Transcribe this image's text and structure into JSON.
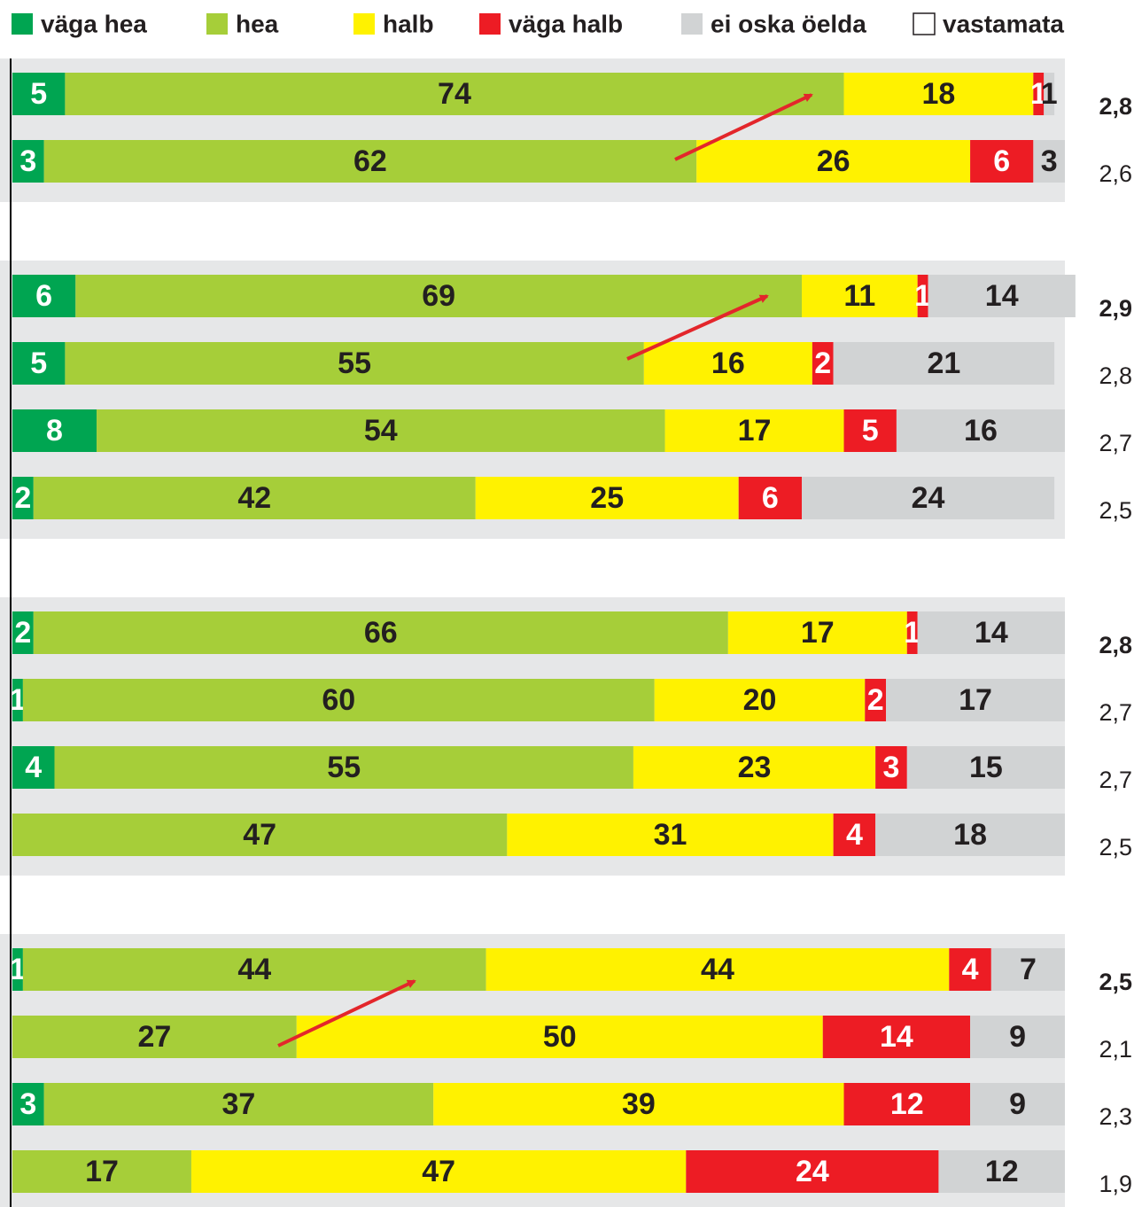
{
  "chart_data": {
    "type": "stacked_barh",
    "categories": [
      null,
      null,
      null,
      null,
      null,
      null,
      null,
      null,
      null,
      null,
      null,
      null,
      null,
      null
    ],
    "xlim": [
      0,
      100
    ],
    "series": [
      {
        "name": "väga hea",
        "color": "#00a551",
        "values": [
          5,
          3,
          6,
          5,
          8,
          2,
          2,
          1,
          4,
          null,
          1,
          null,
          3,
          null
        ]
      },
      {
        "name": "hea",
        "color": "#a6ce39",
        "values": [
          74,
          62,
          69,
          55,
          54,
          42,
          66,
          60,
          55,
          47,
          44,
          27,
          37,
          17
        ]
      },
      {
        "name": "halb",
        "color": "#fff200",
        "values": [
          18,
          26,
          11,
          16,
          17,
          25,
          17,
          20,
          23,
          31,
          44,
          50,
          39,
          47
        ]
      },
      {
        "name": "väga halb",
        "color": "#ed1c24",
        "values": [
          1,
          6,
          1,
          2,
          5,
          6,
          1,
          2,
          3,
          4,
          4,
          14,
          12,
          24
        ]
      },
      {
        "name": "ei oska öelda",
        "color": "#d1d3d4",
        "values": [
          1,
          3,
          14,
          21,
          16,
          24,
          14,
          17,
          15,
          18,
          7,
          9,
          9,
          12
        ]
      },
      {
        "name": "vastamata",
        "color": "#ffffff",
        "values": [
          null,
          null,
          null,
          null,
          null,
          null,
          null,
          null,
          null,
          null,
          null,
          null,
          null,
          null
        ]
      }
    ],
    "means": [
      {
        "value": 2.8,
        "label": "2,8"
      },
      {
        "value": 2.6,
        "label": "2,6"
      },
      {
        "value": 2.9,
        "label": "2,9"
      },
      {
        "value": 2.8,
        "label": "2,8"
      },
      {
        "value": 2.7,
        "label": "2,7"
      },
      {
        "value": 2.5,
        "label": "2,5"
      },
      {
        "value": 2.8,
        "label": "2,8"
      },
      {
        "value": 2.7,
        "label": "2,7"
      },
      {
        "value": 2.7,
        "label": "2,7"
      },
      {
        "value": 2.5,
        "label": "2,5"
      },
      {
        "value": 2.5,
        "label": "2,5"
      },
      {
        "value": 2.1,
        "label": "2,1"
      },
      {
        "value": 2.3,
        "label": "2,3"
      },
      {
        "value": 1.9,
        "label": "1,9"
      }
    ]
  }
}
